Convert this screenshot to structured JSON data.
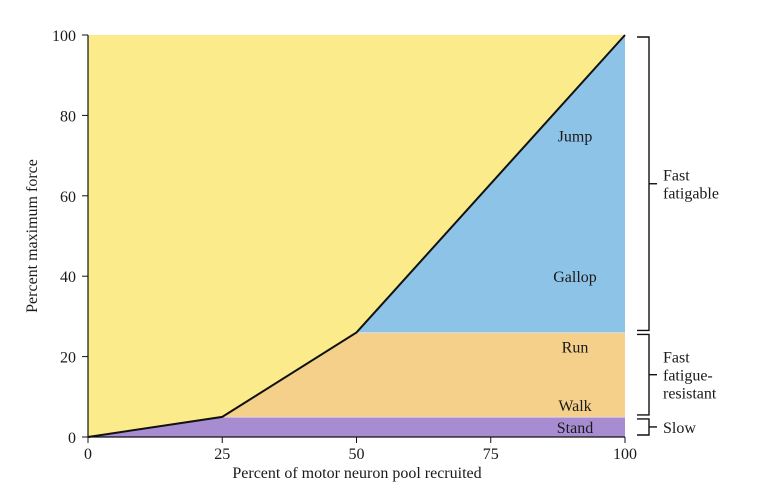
{
  "colors": {
    "background_fill": "#fbeb8a",
    "slow_band": "#a78cd2",
    "fatigue_resistant_band": "#f4d08a",
    "fast_fatigable_band": "#8ec3e8",
    "line": "#111111"
  },
  "chart_data": {
    "type": "area",
    "title": "",
    "xlabel": "Percent of motor neuron pool recruited",
    "ylabel": "Percent maximum force",
    "xlim": [
      0,
      100
    ],
    "ylim": [
      0,
      100
    ],
    "x_ticks": [
      "0",
      "25",
      "50",
      "75",
      "100"
    ],
    "y_ticks": [
      "0",
      "20",
      "40",
      "60",
      "80",
      "100"
    ],
    "grid": false,
    "legend": "none",
    "recruitment_curve": {
      "x": [
        0,
        25,
        50,
        100
      ],
      "y": [
        0,
        5,
        26,
        100
      ]
    },
    "bands": [
      {
        "range": [
          0,
          5
        ],
        "color_key": "slow_band",
        "activities": [
          "Stand"
        ]
      },
      {
        "range": [
          5,
          26
        ],
        "color_key": "fatigue_resistant_band",
        "activities": [
          "Walk",
          "Run"
        ]
      },
      {
        "range": [
          26,
          100
        ],
        "color_key": "fast_fatigable_band",
        "activities": [
          "Gallop",
          "Jump"
        ]
      }
    ],
    "activity_labels": [
      {
        "text": "Stand",
        "y": 2.5
      },
      {
        "text": "Walk",
        "y": 8
      },
      {
        "text": "Run",
        "y": 22.5
      },
      {
        "text": "Gallop",
        "y": 40
      },
      {
        "text": "Jump",
        "y": 75
      }
    ],
    "fiber_type_brackets": [
      {
        "range": [
          26,
          100
        ],
        "lines": [
          "Fast",
          "fatigable"
        ]
      },
      {
        "range": [
          5,
          26
        ],
        "lines": [
          "Fast",
          "fatigue-",
          "resistant"
        ]
      },
      {
        "range": [
          0,
          5
        ],
        "lines": [
          "Slow"
        ]
      }
    ]
  }
}
